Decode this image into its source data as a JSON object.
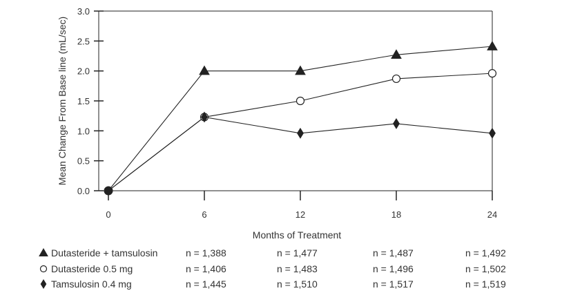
{
  "chart_data": {
    "type": "line",
    "title": "",
    "xlabel": "Months of Treatment",
    "ylabel": "Mean Change From Base line (mL/sec)",
    "x": [
      0,
      6,
      12,
      18,
      24
    ],
    "x_tick_labels": [
      "0",
      "6",
      "12",
      "18",
      "24"
    ],
    "xlim": [
      0,
      24
    ],
    "ylim": [
      0,
      3.0
    ],
    "y_ticks": [
      0.0,
      0.5,
      1.0,
      1.5,
      2.0,
      2.5,
      3.0
    ],
    "y_tick_labels": [
      "0.0",
      "0.5",
      "1.0",
      "1.5",
      "2.0",
      "2.5",
      "3.0"
    ],
    "grid": false,
    "legend_position": "bottom-left",
    "series": [
      {
        "name": "Dutasteride + tamsulosin",
        "marker": "filled-triangle",
        "values": [
          0.0,
          2.0,
          2.0,
          2.27,
          2.41
        ]
      },
      {
        "name": "Dutasteride 0.5 mg",
        "marker": "open-circle",
        "values": [
          0.0,
          1.23,
          1.5,
          1.87,
          1.96
        ]
      },
      {
        "name": "Tamsulosin 0.4 mg",
        "marker": "filled-diamond",
        "values": [
          0.0,
          1.23,
          0.96,
          1.12,
          0.96
        ]
      }
    ],
    "n_table": [
      {
        "series": "Dutasteride + tamsulosin",
        "counts": [
          "n = 1,388",
          "n = 1,477",
          "n = 1,487",
          "n = 1,492"
        ]
      },
      {
        "series": "Dutasteride 0.5 mg",
        "counts": [
          "n = 1,406",
          "n = 1,483",
          "n = 1,496",
          "n = 1,502"
        ]
      },
      {
        "series": "Tamsulosin 0.4 mg",
        "counts": [
          "n = 1,445",
          "n = 1,510",
          "n = 1,517",
          "n = 1,519"
        ]
      }
    ],
    "colors": {
      "line": "#222222",
      "axis": "#222222",
      "text": "#333333"
    }
  }
}
